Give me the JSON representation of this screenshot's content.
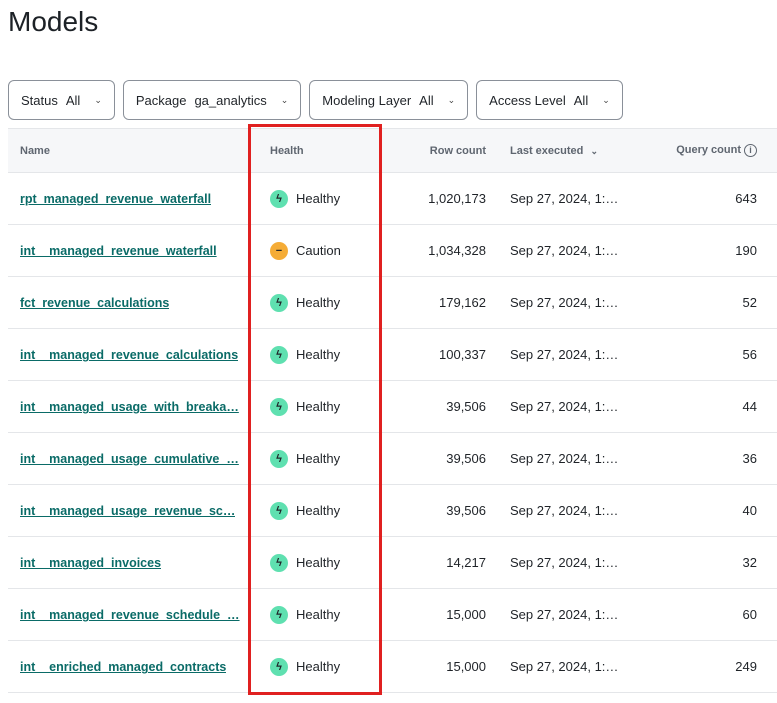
{
  "title": "Models",
  "filters": [
    {
      "label": "Status",
      "value": "All"
    },
    {
      "label": "Package",
      "value": "ga_analytics"
    },
    {
      "label": "Modeling Layer",
      "value": "All"
    },
    {
      "label": "Access Level",
      "value": "All"
    }
  ],
  "columns": {
    "name": "Name",
    "health": "Health",
    "row_count": "Row count",
    "last_executed": "Last executed",
    "query_count": "Query count"
  },
  "colors": {
    "healthy": "#5fe0b0",
    "caution": "#f5ac36",
    "link": "#0a6b67",
    "highlight": "#e02020"
  },
  "rows": [
    {
      "name": "rpt_managed_revenue_waterfall",
      "health": "Healthy",
      "row_count": "1,020,173",
      "last_executed": "Sep 27, 2024, 1:…",
      "query_count": "643"
    },
    {
      "name": "int__managed_revenue_waterfall",
      "health": "Caution",
      "row_count": "1,034,328",
      "last_executed": "Sep 27, 2024, 1:…",
      "query_count": "190"
    },
    {
      "name": "fct_revenue_calculations",
      "health": "Healthy",
      "row_count": "179,162",
      "last_executed": "Sep 27, 2024, 1:…",
      "query_count": "52"
    },
    {
      "name": "int__managed_revenue_calculations",
      "health": "Healthy",
      "row_count": "100,337",
      "last_executed": "Sep 27, 2024, 1:…",
      "query_count": "56"
    },
    {
      "name": "int__managed_usage_with_breaka…",
      "health": "Healthy",
      "row_count": "39,506",
      "last_executed": "Sep 27, 2024, 1:…",
      "query_count": "44"
    },
    {
      "name": "int__managed_usage_cumulative_…",
      "health": "Healthy",
      "row_count": "39,506",
      "last_executed": "Sep 27, 2024, 1:…",
      "query_count": "36"
    },
    {
      "name": "int__managed_usage_revenue_sc…",
      "health": "Healthy",
      "row_count": "39,506",
      "last_executed": "Sep 27, 2024, 1:…",
      "query_count": "40"
    },
    {
      "name": "int__managed_invoices",
      "health": "Healthy",
      "row_count": "14,217",
      "last_executed": "Sep 27, 2024, 1:…",
      "query_count": "32"
    },
    {
      "name": "int__managed_revenue_schedule_…",
      "health": "Healthy",
      "row_count": "15,000",
      "last_executed": "Sep 27, 2024, 1:…",
      "query_count": "60"
    },
    {
      "name": "int__enriched_managed_contracts",
      "health": "Healthy",
      "row_count": "15,000",
      "last_executed": "Sep 27, 2024, 1:…",
      "query_count": "249"
    }
  ]
}
